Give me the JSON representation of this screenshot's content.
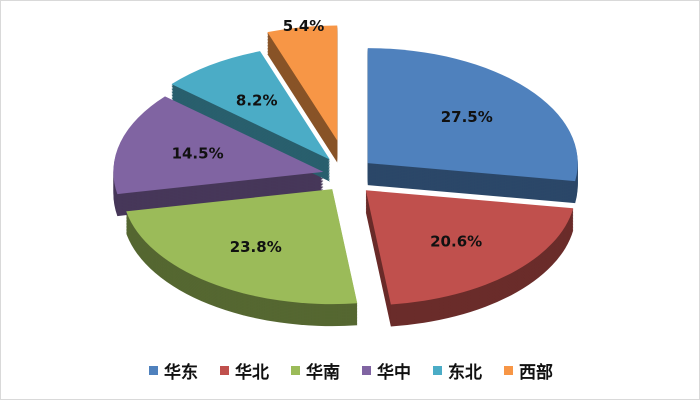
{
  "chart_data": {
    "type": "pie",
    "style": "3d-exploded",
    "categories": [
      "华东",
      "华北",
      "华南",
      "华中",
      "东北",
      "西部"
    ],
    "values": [
      27.5,
      20.6,
      23.8,
      14.5,
      8.2,
      5.4
    ],
    "labels": [
      "27.5%",
      "20.6%",
      "23.8%",
      "14.5%",
      "8.2%",
      "5.4%"
    ],
    "colors": [
      "#4f81bd",
      "#c0504d",
      "#9bbb59",
      "#8064a2",
      "#4bacc6",
      "#f79646"
    ],
    "legend_position": "bottom"
  }
}
